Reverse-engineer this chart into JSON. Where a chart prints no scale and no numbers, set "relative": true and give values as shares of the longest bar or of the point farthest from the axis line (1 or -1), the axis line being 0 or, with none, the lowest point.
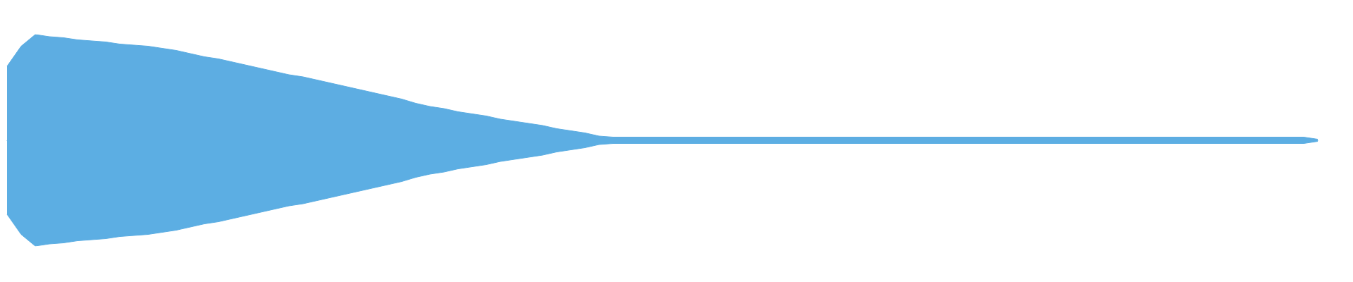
{
  "chart_data": {
    "type": "area",
    "relative": true,
    "categories": [
      null,
      null,
      null,
      null,
      null,
      null,
      null,
      null,
      null,
      null,
      null,
      null,
      null,
      null,
      null,
      null,
      null,
      null,
      null,
      null,
      null,
      null,
      null,
      null,
      null,
      null,
      null,
      null,
      null,
      null,
      null,
      null,
      null,
      null,
      null,
      null,
      null,
      null,
      null,
      null,
      null,
      null,
      null,
      null,
      null,
      null,
      null,
      null,
      null,
      null,
      null,
      null,
      null,
      null,
      null,
      null,
      null,
      null,
      null,
      null,
      null,
      null,
      null,
      null,
      null,
      null,
      null,
      null,
      null,
      null,
      null,
      null,
      null,
      null,
      null,
      null,
      null,
      null,
      null,
      null,
      null,
      null,
      null,
      null,
      null,
      null,
      null,
      null,
      null,
      null,
      null,
      null,
      null,
      null
    ],
    "series": [
      {
        "color": "#5dade2",
        "values": [
          0.7,
          0.89,
          1.0,
          0.98,
          0.97,
          0.95,
          0.94,
          0.93,
          0.91,
          0.9,
          0.89,
          0.87,
          0.85,
          0.82,
          0.79,
          0.77,
          0.74,
          0.71,
          0.68,
          0.65,
          0.62,
          0.6,
          0.57,
          0.54,
          0.51,
          0.48,
          0.45,
          0.42,
          0.39,
          0.35,
          0.32,
          0.3,
          0.27,
          0.25,
          0.23,
          0.2,
          0.18,
          0.16,
          0.14,
          0.11,
          0.09,
          0.07,
          0.04,
          0.03,
          0.03,
          0.03,
          0.03,
          0.03,
          0.03,
          0.03,
          0.03,
          0.03,
          0.03,
          0.03,
          0.03,
          0.03,
          0.03,
          0.03,
          0.03,
          0.03,
          0.03,
          0.03,
          0.03,
          0.03,
          0.03,
          0.03,
          0.03,
          0.03,
          0.03,
          0.03,
          0.03,
          0.03,
          0.03,
          0.03,
          0.03,
          0.03,
          0.03,
          0.03,
          0.03,
          0.03,
          0.03,
          0.03,
          0.03,
          0.03,
          0.03,
          0.03,
          0.03,
          0.03,
          0.03,
          0.03,
          0.03,
          0.03,
          0.03,
          0.01
        ]
      },
      {
        "color": "#5caee3",
        "values": [
          -0.7,
          -0.89,
          -1.0,
          -0.98,
          -0.97,
          -0.95,
          -0.94,
          -0.93,
          -0.91,
          -0.9,
          -0.89,
          -0.87,
          -0.85,
          -0.82,
          -0.79,
          -0.77,
          -0.74,
          -0.71,
          -0.68,
          -0.65,
          -0.62,
          -0.6,
          -0.57,
          -0.54,
          -0.51,
          -0.48,
          -0.45,
          -0.42,
          -0.39,
          -0.35,
          -0.32,
          -0.3,
          -0.27,
          -0.25,
          -0.23,
          -0.2,
          -0.18,
          -0.16,
          -0.14,
          -0.11,
          -0.09,
          -0.07,
          -0.04,
          -0.03,
          -0.03,
          -0.03,
          -0.03,
          -0.03,
          -0.03,
          -0.03,
          -0.03,
          -0.03,
          -0.03,
          -0.03,
          -0.03,
          -0.03,
          -0.03,
          -0.03,
          -0.03,
          -0.03,
          -0.03,
          -0.03,
          -0.03,
          -0.03,
          -0.03,
          -0.03,
          -0.03,
          -0.03,
          -0.03,
          -0.03,
          -0.03,
          -0.03,
          -0.03,
          -0.03,
          -0.03,
          -0.03,
          -0.03,
          -0.03,
          -0.03,
          -0.03,
          -0.03,
          -0.03,
          -0.03,
          -0.03,
          -0.03,
          -0.03,
          -0.03,
          -0.03,
          -0.03,
          -0.03,
          -0.03,
          -0.03,
          -0.03,
          -0.01
        ]
      }
    ]
  }
}
